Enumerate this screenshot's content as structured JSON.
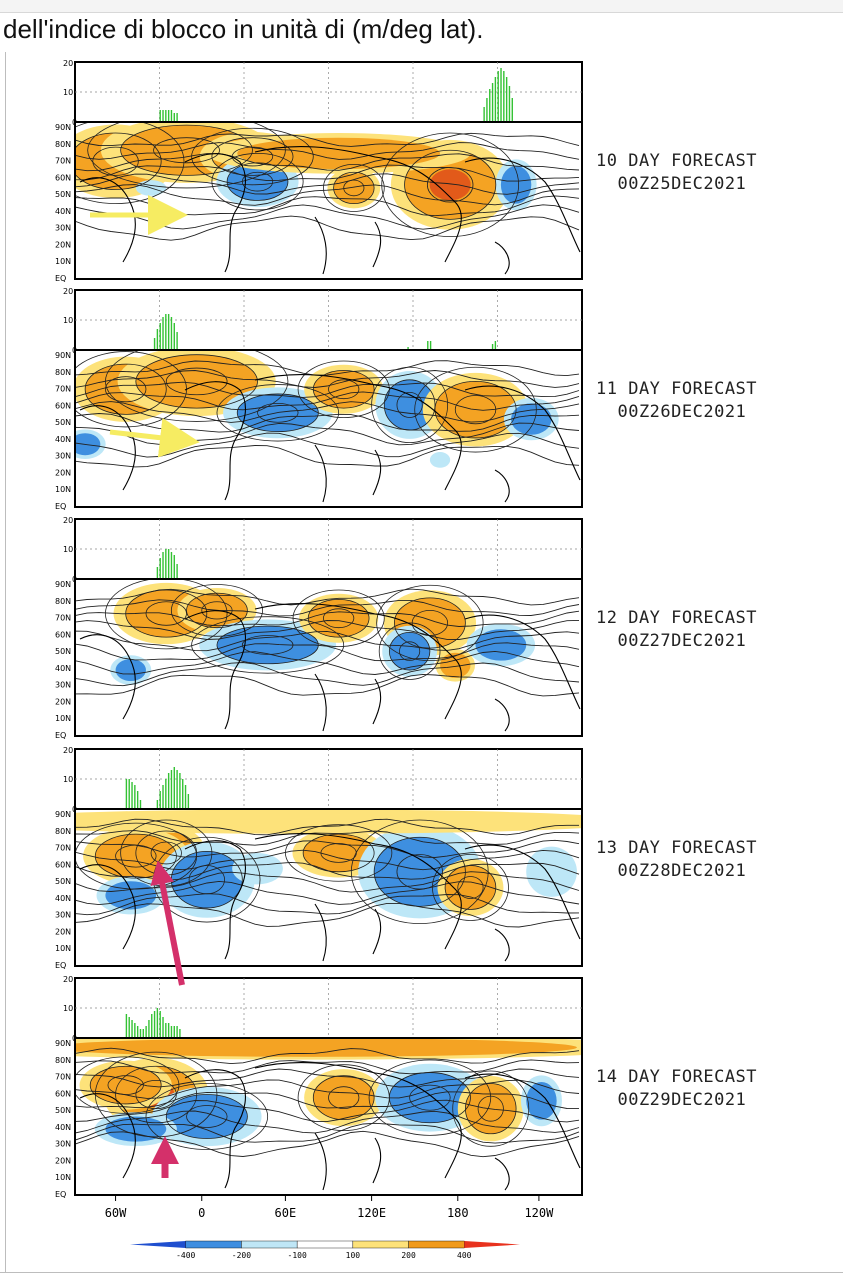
{
  "caption": "dell'indice di blocco in unità di (m/deg lat).",
  "panels": [
    {
      "day": "10 DAY FORECAST",
      "date": "00Z25DEC2021",
      "block_index": [
        [
          30,
          4
        ],
        [
          31,
          4
        ],
        [
          32,
          4
        ],
        [
          33,
          4
        ],
        [
          34,
          4
        ],
        [
          35,
          3
        ],
        [
          36,
          3
        ],
        [
          145,
          5
        ],
        [
          146,
          8
        ],
        [
          147,
          11
        ],
        [
          148,
          13
        ],
        [
          149,
          15
        ],
        [
          150,
          17
        ],
        [
          151,
          18
        ],
        [
          152,
          17
        ],
        [
          153,
          15
        ],
        [
          154,
          12
        ],
        [
          155,
          8
        ]
      ]
    },
    {
      "day": "11 DAY FORECAST",
      "date": "00Z26DEC2021",
      "block_index": [
        [
          28,
          4
        ],
        [
          29,
          7
        ],
        [
          30,
          9
        ],
        [
          31,
          11
        ],
        [
          32,
          12
        ],
        [
          33,
          12
        ],
        [
          34,
          11
        ],
        [
          35,
          9
        ],
        [
          36,
          6
        ],
        [
          118,
          1
        ],
        [
          125,
          3
        ],
        [
          126,
          3
        ],
        [
          148,
          2
        ],
        [
          149,
          3
        ]
      ]
    },
    {
      "day": "12 DAY FORECAST",
      "date": "00Z27DEC2021",
      "block_index": [
        [
          29,
          4
        ],
        [
          30,
          7
        ],
        [
          31,
          9
        ],
        [
          32,
          10
        ],
        [
          33,
          10
        ],
        [
          34,
          9
        ],
        [
          35,
          8
        ],
        [
          36,
          5
        ]
      ]
    },
    {
      "day": "13 DAY FORECAST",
      "date": "00Z28DEC2021",
      "block_index": [
        [
          18,
          10
        ],
        [
          19,
          10
        ],
        [
          20,
          9
        ],
        [
          21,
          8
        ],
        [
          22,
          6
        ],
        [
          23,
          3
        ],
        [
          29,
          3
        ],
        [
          30,
          6
        ],
        [
          31,
          8
        ],
        [
          32,
          10
        ],
        [
          33,
          12
        ],
        [
          34,
          13
        ],
        [
          35,
          14
        ],
        [
          36,
          13
        ],
        [
          37,
          12
        ],
        [
          38,
          10
        ],
        [
          39,
          8
        ],
        [
          40,
          5
        ]
      ]
    },
    {
      "day": "14 DAY FORECAST",
      "date": "00Z29DEC2021",
      "block_index": [
        [
          18,
          8
        ],
        [
          19,
          7
        ],
        [
          20,
          6
        ],
        [
          21,
          5
        ],
        [
          22,
          4
        ],
        [
          23,
          3
        ],
        [
          24,
          3
        ],
        [
          25,
          4
        ],
        [
          26,
          6
        ],
        [
          27,
          8
        ],
        [
          28,
          9
        ],
        [
          29,
          10
        ],
        [
          30,
          9
        ],
        [
          31,
          7
        ],
        [
          32,
          5
        ],
        [
          33,
          5
        ],
        [
          34,
          4
        ],
        [
          35,
          4
        ],
        [
          36,
          4
        ],
        [
          37,
          3
        ]
      ]
    }
  ],
  "bar_axis": {
    "top": "20",
    "mid": "10",
    "zero": "0"
  },
  "lat_labels": [
    "90N",
    "80N",
    "70N",
    "60N",
    "50N",
    "40N",
    "30N",
    "20N",
    "10N",
    "EQ"
  ],
  "lon_labels": [
    "60W",
    "0",
    "60E",
    "120E",
    "180",
    "120W"
  ],
  "colorbar": {
    "labels": [
      "-400",
      "-200",
      "-100",
      "100",
      "200",
      "400"
    ],
    "colors": [
      "#1f4fcf",
      "#3f8ee0",
      "#bfe6f6",
      "#ffffff",
      "#fde27a",
      "#f09a1c",
      "#e8321e"
    ]
  },
  "colors": {
    "high": "#f4a323",
    "high_strong": "#e25a1a",
    "low": "#3e8fe0",
    "low_light": "#bde7f7",
    "bar": "#33c233",
    "arrow_yellow": "#f6ec62",
    "arrow_pink": "#d4306a"
  }
}
